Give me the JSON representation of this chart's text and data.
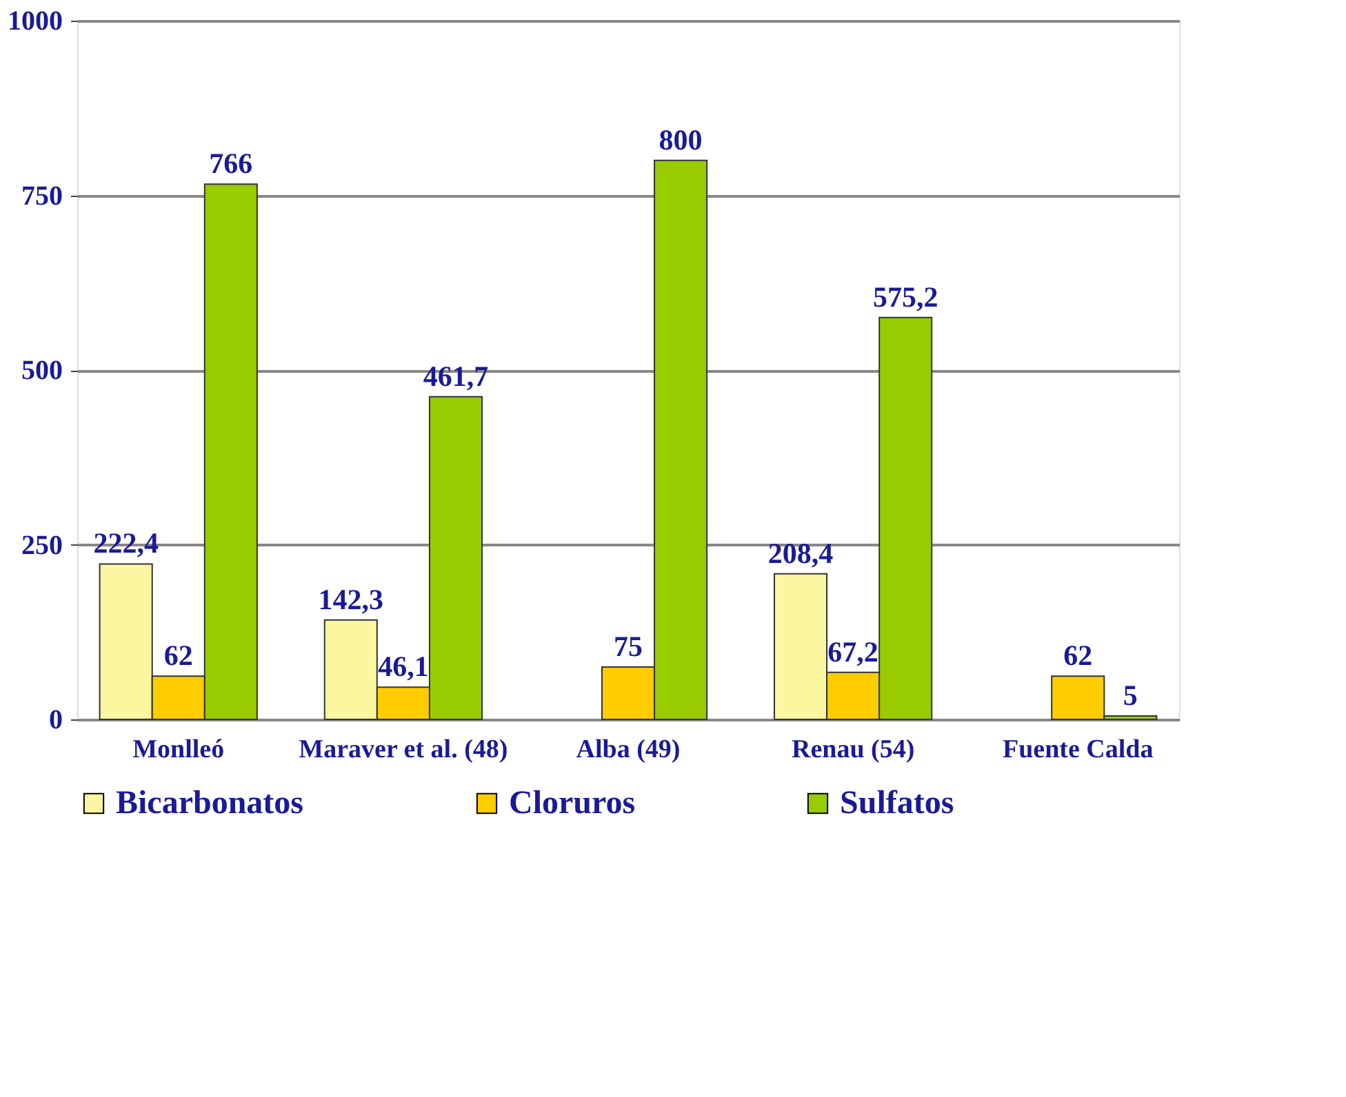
{
  "chart_data": {
    "type": "bar",
    "categories": [
      "Monlleó",
      "Maraver et al. (48)",
      "Alba (49)",
      "Renau (54)",
      "Fuente Calda"
    ],
    "series": [
      {
        "name": "Bicarbonatos",
        "color": "#fbf7a0",
        "values": [
          222.4,
          142.3,
          null,
          208.4,
          null
        ],
        "value_labels": [
          "222,4",
          "142,3",
          null,
          "208,4",
          null
        ]
      },
      {
        "name": "Cloruros",
        "color": "#ffcc00",
        "values": [
          62,
          46.1,
          75,
          67.2,
          62
        ],
        "value_labels": [
          "62",
          "46,1",
          "75",
          "67,2",
          "62"
        ]
      },
      {
        "name": "Sulfatos",
        "color": "#99cc00",
        "values": [
          766,
          461.7,
          800,
          575.2,
          5
        ],
        "value_labels": [
          "766",
          "461,7",
          "800",
          "575,2",
          "5"
        ]
      }
    ],
    "ylim": [
      0,
      1000
    ],
    "yticks": [
      0,
      250,
      500,
      750,
      1000
    ],
    "grid": "y",
    "legend": "bottom"
  }
}
